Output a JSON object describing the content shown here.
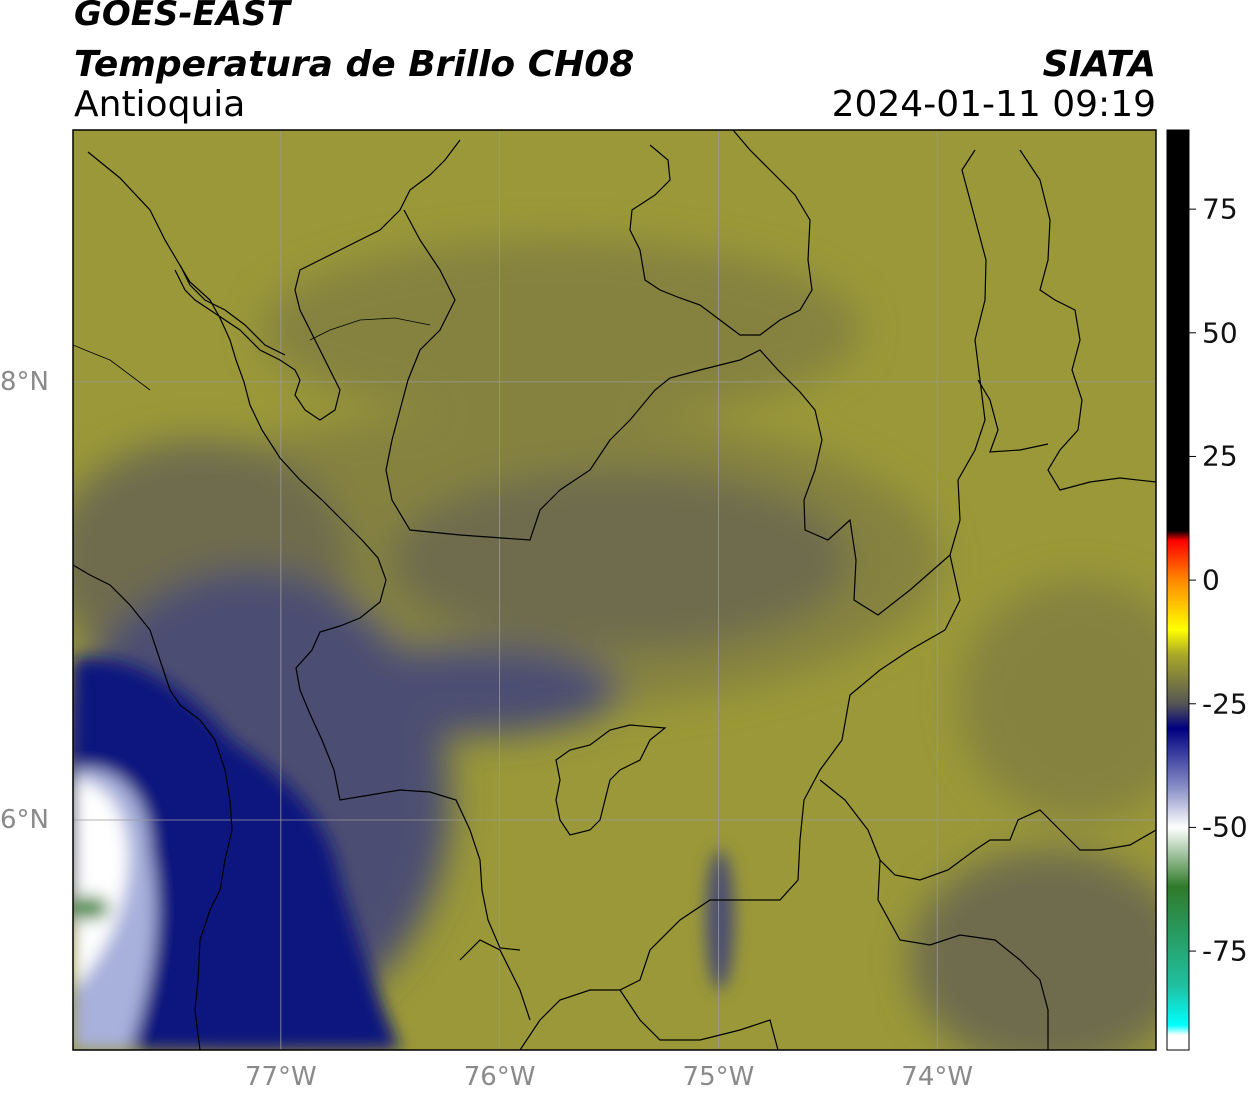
{
  "header": {
    "satellite": "GOES-EAST",
    "product": "Temperatura de Brillo CH08",
    "region": "Antioquia",
    "organization": "SIATA",
    "timestamp": "2024-01-11 09:19"
  },
  "map": {
    "extent": {
      "lon_min": -77.95,
      "lon_max": -73.0,
      "lat_min": 4.95,
      "lat_max": 9.15
    },
    "graticule": {
      "longitudes": [
        {
          "value": -77,
          "label": "77°W"
        },
        {
          "value": -76,
          "label": "76°W"
        },
        {
          "value": -75,
          "label": "75°W"
        },
        {
          "value": -74,
          "label": "74°W"
        }
      ],
      "latitudes": [
        {
          "value": 8,
          "label": "8°N"
        },
        {
          "value": 6,
          "label": "6°N"
        }
      ]
    },
    "colors": {
      "warm_yellow": "#aaa928",
      "olive": "#9a9838",
      "mid_olive": "#858240",
      "gray_olive": "#6e6c4e",
      "slate": "#4c4e72",
      "navy": "#0c137e",
      "light_blue": "#a8b0dc",
      "white": "#ffffff",
      "green": "#3d8a3a"
    }
  },
  "colorbar": {
    "ticks": [
      {
        "value": 75,
        "label": "75"
      },
      {
        "value": 50,
        "label": "50"
      },
      {
        "value": 25,
        "label": "25"
      },
      {
        "value": 0,
        "label": "0"
      },
      {
        "value": -25,
        "label": "-25"
      },
      {
        "value": -50,
        "label": "-50"
      },
      {
        "value": -75,
        "label": "-75"
      }
    ],
    "range": [
      -95,
      91
    ],
    "stops": [
      {
        "value": 91,
        "color": "#000000"
      },
      {
        "value": 10,
        "color": "#000000"
      },
      {
        "value": 8,
        "color": "#ff0000"
      },
      {
        "value": 0,
        "color": "#ff8800"
      },
      {
        "value": -10,
        "color": "#ffff00"
      },
      {
        "value": -15,
        "color": "#aaa928"
      },
      {
        "value": -25,
        "color": "#555555"
      },
      {
        "value": -30,
        "color": "#000080"
      },
      {
        "value": -42,
        "color": "#8a90c8"
      },
      {
        "value": -50,
        "color": "#ffffff"
      },
      {
        "value": -62,
        "color": "#2f7a2a"
      },
      {
        "value": -82,
        "color": "#20c0a0"
      },
      {
        "value": -90,
        "color": "#00ffff"
      },
      {
        "value": -92,
        "color": "#ffffff"
      },
      {
        "value": -95,
        "color": "#ffffff"
      }
    ]
  }
}
